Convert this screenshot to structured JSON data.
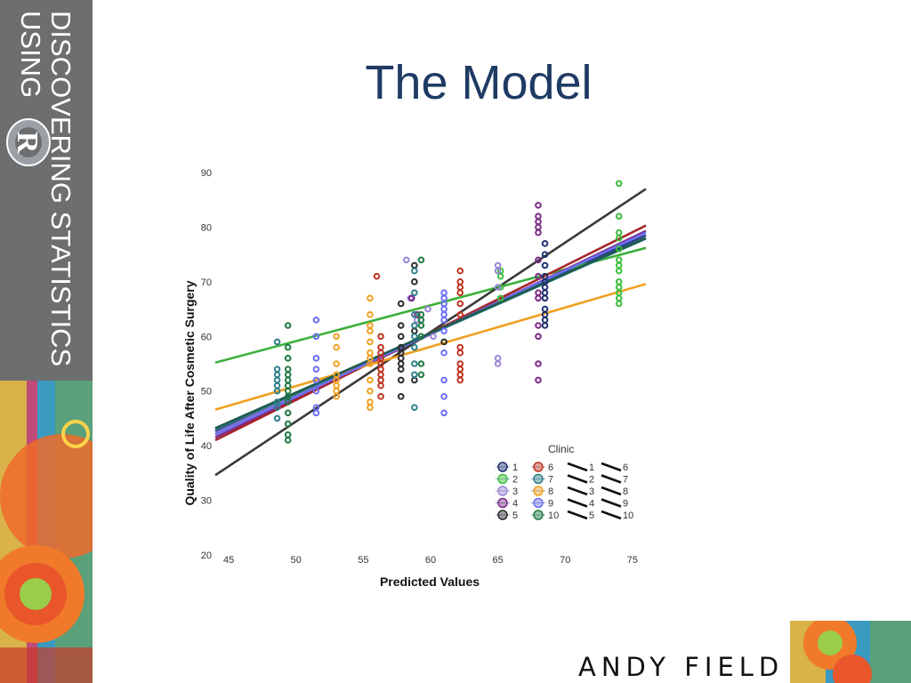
{
  "slide": {
    "title": "The Model",
    "author": "ANDY FIELD",
    "book_line1": "DISCOVERING STATISTICS",
    "book_line2": "USING",
    "logo_letter": "R"
  },
  "colors": {
    "sidebar_gray": "#6d6e70",
    "title_blue": "#1f3b63"
  },
  "chart_data": {
    "type": "scatter",
    "xlabel": "Predicted Values",
    "ylabel": "Quality of Life After Cosmetic Surgery",
    "xlim": [
      44,
      76
    ],
    "ylim": [
      20,
      90
    ],
    "xticks": [
      45,
      50,
      55,
      60,
      65,
      70,
      75
    ],
    "yticks": [
      20,
      30,
      40,
      50,
      60,
      70,
      80,
      90
    ],
    "legend": {
      "title": "Clinic",
      "position": "bottom-right",
      "items": [
        "1",
        "2",
        "3",
        "4",
        "5",
        "6",
        "7",
        "8",
        "9",
        "10"
      ]
    },
    "series": [
      {
        "name": "1",
        "color": "#1f2f6e",
        "x": [
          68.5,
          68.5,
          68.5,
          68.5,
          68.5,
          68.5,
          68.5,
          68.5,
          68.5,
          68.5,
          68.5,
          68.5
        ],
        "y": [
          77,
          75,
          73,
          71,
          70,
          69,
          68,
          67,
          65,
          63,
          62,
          64
        ]
      },
      {
        "name": "2",
        "color": "#3cbf3c",
        "x": [
          65.2,
          65.2,
          65.2,
          65.2,
          74.0,
          74.0,
          74.0,
          74.0,
          74.0,
          74.0,
          74.0,
          74.0,
          74.0,
          74.0,
          74.0,
          74.0,
          74.0
        ],
        "y": [
          72,
          71,
          69,
          67,
          88,
          82,
          79,
          78,
          76,
          74,
          73,
          72,
          70,
          69,
          68,
          67,
          66
        ]
      },
      {
        "name": "3",
        "color": "#9b86d8",
        "x": [
          58.2,
          58.5,
          59.0,
          59.8,
          60.2,
          65.0,
          65.0,
          65.0,
          65.0,
          65.0
        ],
        "y": [
          74,
          67,
          63,
          65,
          60,
          73,
          72,
          69,
          56,
          55
        ]
      },
      {
        "name": "4",
        "color": "#7b2a86",
        "x": [
          68.0,
          68.0,
          68.0,
          68.0,
          68.0,
          68.0,
          68.0,
          68.0,
          68.0,
          68.0,
          68.0,
          68.0,
          68.0,
          58.6,
          59.0
        ],
        "y": [
          84,
          82,
          81,
          80,
          79,
          74,
          71,
          68,
          67,
          62,
          60,
          55,
          52,
          67,
          64
        ]
      },
      {
        "name": "5",
        "color": "#2b2b2b",
        "x": [
          57.8,
          57.8,
          57.8,
          57.8,
          57.8,
          57.8,
          57.8,
          57.8,
          57.8,
          57.8,
          58.8,
          58.8,
          58.8,
          58.8,
          61.0
        ],
        "y": [
          66,
          62,
          60,
          58,
          57,
          56,
          55,
          54,
          52,
          49,
          73,
          70,
          61,
          52,
          59
        ]
      },
      {
        "name": "6",
        "color": "#c0321e",
        "x": [
          56.0,
          56.3,
          56.3,
          56.3,
          56.3,
          56.3,
          56.3,
          56.3,
          56.3,
          56.3,
          56.3,
          62.2,
          62.2,
          62.2,
          62.2,
          62.2,
          62.2,
          62.2,
          62.2,
          62.2,
          62.2,
          62.2,
          62.2
        ],
        "y": [
          71,
          60,
          58,
          57,
          56,
          55,
          54,
          53,
          52,
          51,
          49,
          72,
          70,
          69,
          68,
          66,
          64,
          58,
          57,
          55,
          54,
          53,
          52
        ]
      },
      {
        "name": "7",
        "color": "#2f7f8a",
        "x": [
          48.6,
          48.6,
          48.6,
          48.6,
          48.6,
          48.6,
          48.6,
          48.6,
          48.6,
          58.8,
          58.8,
          58.8,
          58.8,
          58.8,
          58.8,
          58.8,
          58.8,
          58.8
        ],
        "y": [
          59,
          54,
          53,
          52,
          51,
          50,
          48,
          47,
          45,
          72,
          68,
          64,
          62,
          60,
          58,
          55,
          53,
          47
        ]
      },
      {
        "name": "8",
        "color": "#f0a020",
        "x": [
          53.0,
          53.0,
          53.0,
          53.0,
          53.0,
          53.0,
          53.0,
          53.0,
          55.5,
          55.5,
          55.5,
          55.5,
          55.5,
          55.5,
          55.5,
          55.5,
          55.5,
          55.5,
          55.5,
          55.5
        ],
        "y": [
          60,
          58,
          55,
          53,
          52,
          51,
          50,
          49,
          67,
          64,
          62,
          61,
          59,
          57,
          56,
          55,
          52,
          50,
          48,
          47
        ]
      },
      {
        "name": "9",
        "color": "#6d6ff0",
        "x": [
          51.5,
          51.5,
          51.5,
          51.5,
          51.5,
          51.5,
          51.5,
          51.5,
          61.0,
          61.0,
          61.0,
          61.0,
          61.0,
          61.0,
          61.0,
          61.0,
          61.0,
          61.0,
          61.0
        ],
        "y": [
          63,
          60,
          56,
          54,
          52,
          50,
          47,
          46,
          68,
          67,
          66,
          65,
          64,
          63,
          61,
          57,
          52,
          49,
          46
        ]
      },
      {
        "name": "10",
        "color": "#1e7a44",
        "x": [
          49.4,
          49.4,
          49.4,
          49.4,
          49.4,
          49.4,
          49.4,
          49.4,
          49.4,
          49.4,
          49.4,
          49.4,
          49.4,
          49.4,
          59.3,
          59.3,
          59.3,
          59.3,
          59.3,
          59.3,
          59.3
        ],
        "y": [
          62,
          58,
          56,
          54,
          53,
          52,
          51,
          50,
          49,
          48,
          46,
          44,
          42,
          41,
          74,
          64,
          63,
          62,
          60,
          55,
          53
        ]
      }
    ],
    "fit_lines": [
      {
        "name": "1",
        "color": "#2a3f8a",
        "x": [
          44,
          76
        ],
        "y": [
          42.7,
          78.5
        ]
      },
      {
        "name": "2",
        "color": "#3cb03c",
        "x": [
          44,
          76
        ],
        "y": [
          55.2,
          76.2
        ]
      },
      {
        "name": "3",
        "color": "#8878c8",
        "x": [
          44,
          76
        ],
        "y": [
          42.3,
          79.0
        ]
      },
      {
        "name": "4",
        "color": "#7b2a86",
        "x": [
          44,
          76
        ],
        "y": [
          41.5,
          79.3
        ]
      },
      {
        "name": "5",
        "color": "#3a3a3a",
        "x": [
          44,
          76
        ],
        "y": [
          34.6,
          87.0
        ]
      },
      {
        "name": "6",
        "color": "#a6262a",
        "x": [
          44,
          76
        ],
        "y": [
          41.0,
          80.3
        ]
      },
      {
        "name": "7",
        "color": "#2f7f8a",
        "x": [
          44,
          76
        ],
        "y": [
          43.0,
          77.9
        ]
      },
      {
        "name": "8",
        "color": "#f0a020",
        "x": [
          44,
          76
        ],
        "y": [
          46.6,
          69.6
        ]
      },
      {
        "name": "9",
        "color": "#6d6ff0",
        "x": [
          44,
          76
        ],
        "y": [
          42.0,
          79.0
        ]
      },
      {
        "name": "10",
        "color": "#1e5a4e",
        "x": [
          44,
          76
        ],
        "y": [
          43.2,
          78.0
        ]
      }
    ]
  }
}
